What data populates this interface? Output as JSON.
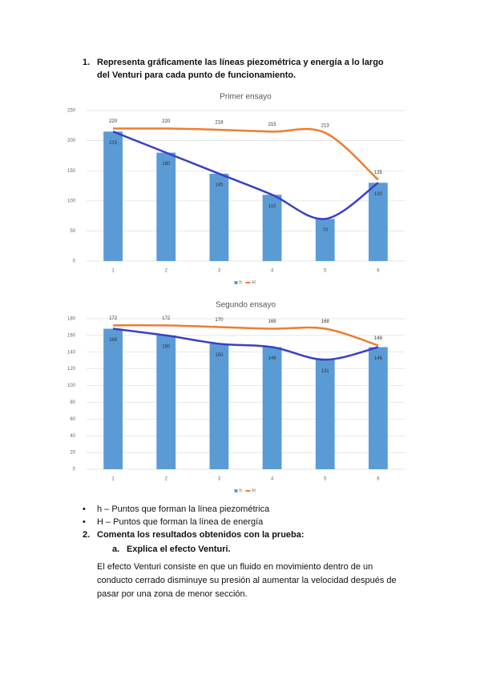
{
  "heading": {
    "number": "1.",
    "text": "Representa gráficamente las líneas piezométrica y energía a lo largo del Venturi para cada punto de funcionamiento."
  },
  "chart_data": [
    {
      "type": "bar_line",
      "title": "Primer ensayo",
      "categories": [
        "1",
        "2",
        "3",
        "4",
        "5",
        "6"
      ],
      "series": [
        {
          "name": "h",
          "color": "#5b9bd5",
          "values": [
            215,
            180,
            145,
            110,
            70,
            130
          ]
        },
        {
          "name": "H",
          "color": "#ed7d31",
          "values": [
            220,
            220,
            218,
            215,
            213,
            135
          ]
        }
      ],
      "trend_color": "#3a3fc4",
      "ylim": [
        0,
        250
      ],
      "yticks": [
        0,
        50,
        100,
        150,
        200,
        250
      ],
      "grid": true
    },
    {
      "type": "bar_line",
      "title": "Segundo ensayo",
      "categories": [
        "1",
        "2",
        "3",
        "4",
        "5",
        "6"
      ],
      "series": [
        {
          "name": "h",
          "color": "#5b9bd5",
          "values": [
            168,
            160,
            150,
            146,
            131,
            146
          ]
        },
        {
          "name": "H",
          "color": "#ed7d31",
          "values": [
            172,
            172,
            170,
            168,
            168,
            148
          ]
        }
      ],
      "trend_color": "#3a3fc4",
      "ylim": [
        0,
        180
      ],
      "yticks": [
        0,
        20,
        40,
        60,
        80,
        100,
        120,
        140,
        160,
        180
      ],
      "grid": true
    }
  ],
  "bullets": [
    "h – Puntos que forman la línea piezométrica",
    "H – Puntos que forman la línea de energía"
  ],
  "question": {
    "number": "2.",
    "text": "Comenta los resultados obtenidos con la prueba:"
  },
  "subquestion": {
    "number": "a.",
    "text": "Explica el efecto Venturi."
  },
  "answer": "El efecto Venturi consiste en que un fluido en movimiento dentro de un conducto cerrado disminuye su presión al aumentar la velocidad después de pasar por una zona de menor sección."
}
